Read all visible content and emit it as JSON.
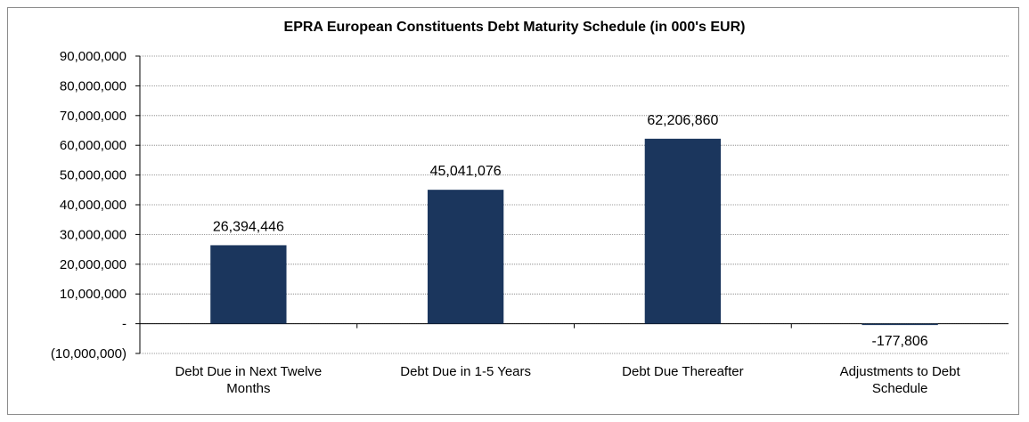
{
  "chart_data": {
    "type": "bar",
    "title": "EPRA European Constituents Debt Maturity Schedule (in 000's EUR)",
    "xlabel": "",
    "ylabel": "",
    "ylim": [
      -10000000,
      90000000
    ],
    "yticks": [
      {
        "value": 90000000,
        "label": "90,000,000"
      },
      {
        "value": 80000000,
        "label": "80,000,000"
      },
      {
        "value": 70000000,
        "label": "70,000,000"
      },
      {
        "value": 60000000,
        "label": "60,000,000"
      },
      {
        "value": 50000000,
        "label": "50,000,000"
      },
      {
        "value": 40000000,
        "label": "40,000,000"
      },
      {
        "value": 30000000,
        "label": "30,000,000"
      },
      {
        "value": 20000000,
        "label": "20,000,000"
      },
      {
        "value": 10000000,
        "label": "10,000,000"
      },
      {
        "value": 0,
        "label": "-"
      },
      {
        "value": -10000000,
        "label": "(10,000,000)"
      }
    ],
    "categories": [
      [
        "Debt Due in Next Twelve",
        "Months"
      ],
      [
        "Debt Due in 1-5 Years"
      ],
      [
        "Debt Due Thereafter"
      ],
      [
        "Adjustments to Debt",
        "Schedule"
      ]
    ],
    "values": [
      26394446,
      45041076,
      62206860,
      -177806
    ],
    "data_labels": [
      "26,394,446",
      "45,041,076",
      "62,206,860",
      "-177,806"
    ],
    "grid": true,
    "bar_color": "#1b365d"
  }
}
